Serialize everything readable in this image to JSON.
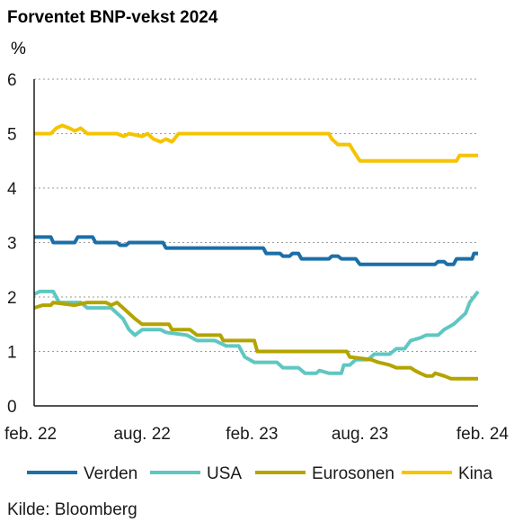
{
  "chart_data": {
    "type": "line",
    "title": "Forventet BNP-vekst 2024",
    "ylabel": "%",
    "xlabel": "",
    "ylim": [
      0,
      6
    ],
    "yticks": [
      0,
      1,
      2,
      3,
      4,
      5,
      6
    ],
    "xlim": [
      "2022-02-01",
      "2024-02-15"
    ],
    "xtick_labels": [
      {
        "date": "2022-02-01",
        "label": "feb. 22"
      },
      {
        "date": "2022-08-01",
        "label": "aug. 22"
      },
      {
        "date": "2023-02-01",
        "label": "feb. 23"
      },
      {
        "date": "2023-08-01",
        "label": "aug. 23"
      },
      {
        "date": "2024-02-01",
        "label": "feb. 24"
      }
    ],
    "grid": "horizontal dotted",
    "legend_position": "bottom",
    "source": "Kilde: Bloomberg",
    "series": [
      {
        "name": "Verden",
        "color": "#1b6fa8",
        "points": [
          [
            "2022-02-01",
            3.1
          ],
          [
            "2022-03-01",
            3.1
          ],
          [
            "2022-03-05",
            3.0
          ],
          [
            "2022-04-10",
            3.0
          ],
          [
            "2022-04-15",
            3.1
          ],
          [
            "2022-05-10",
            3.1
          ],
          [
            "2022-05-15",
            3.0
          ],
          [
            "2022-06-20",
            3.0
          ],
          [
            "2022-06-25",
            2.95
          ],
          [
            "2022-07-05",
            2.95
          ],
          [
            "2022-07-10",
            3.0
          ],
          [
            "2022-09-05",
            3.0
          ],
          [
            "2022-09-10",
            2.9
          ],
          [
            "2023-01-10",
            2.9
          ],
          [
            "2023-01-15",
            2.9
          ],
          [
            "2023-02-20",
            2.9
          ],
          [
            "2023-02-25",
            2.8
          ],
          [
            "2023-03-20",
            2.8
          ],
          [
            "2023-03-25",
            2.75
          ],
          [
            "2023-04-05",
            2.75
          ],
          [
            "2023-04-10",
            2.8
          ],
          [
            "2023-04-20",
            2.8
          ],
          [
            "2023-04-25",
            2.7
          ],
          [
            "2023-06-10",
            2.7
          ],
          [
            "2023-06-15",
            2.75
          ],
          [
            "2023-06-25",
            2.75
          ],
          [
            "2023-07-01",
            2.7
          ],
          [
            "2023-07-25",
            2.7
          ],
          [
            "2023-08-01",
            2.6
          ],
          [
            "2023-12-05",
            2.6
          ],
          [
            "2023-12-10",
            2.65
          ],
          [
            "2023-12-20",
            2.65
          ],
          [
            "2023-12-25",
            2.6
          ],
          [
            "2024-01-05",
            2.6
          ],
          [
            "2024-01-10",
            2.7
          ],
          [
            "2024-02-05",
            2.7
          ],
          [
            "2024-02-08",
            2.8
          ],
          [
            "2024-02-15",
            2.8
          ]
        ]
      },
      {
        "name": "USA",
        "color": "#5fc7c1",
        "points": [
          [
            "2022-02-01",
            2.05
          ],
          [
            "2022-02-10",
            2.1
          ],
          [
            "2022-03-05",
            2.1
          ],
          [
            "2022-03-15",
            1.9
          ],
          [
            "2022-04-20",
            1.9
          ],
          [
            "2022-05-01",
            1.8
          ],
          [
            "2022-06-10",
            1.8
          ],
          [
            "2022-06-20",
            1.7
          ],
          [
            "2022-06-30",
            1.6
          ],
          [
            "2022-07-10",
            1.4
          ],
          [
            "2022-07-20",
            1.3
          ],
          [
            "2022-08-01",
            1.4
          ],
          [
            "2022-09-01",
            1.4
          ],
          [
            "2022-09-10",
            1.35
          ],
          [
            "2022-10-15",
            1.3
          ],
          [
            "2022-11-01",
            1.2
          ],
          [
            "2022-12-01",
            1.2
          ],
          [
            "2022-12-20",
            1.1
          ],
          [
            "2023-01-10",
            1.1
          ],
          [
            "2023-01-20",
            0.9
          ],
          [
            "2023-02-05",
            0.8
          ],
          [
            "2023-03-15",
            0.8
          ],
          [
            "2023-03-25",
            0.7
          ],
          [
            "2023-04-20",
            0.7
          ],
          [
            "2023-05-01",
            0.6
          ],
          [
            "2023-05-20",
            0.6
          ],
          [
            "2023-05-25",
            0.65
          ],
          [
            "2023-06-10",
            0.6
          ],
          [
            "2023-07-01",
            0.6
          ],
          [
            "2023-07-05",
            0.75
          ],
          [
            "2023-07-15",
            0.75
          ],
          [
            "2023-07-25",
            0.85
          ],
          [
            "2023-08-15",
            0.85
          ],
          [
            "2023-08-25",
            0.95
          ],
          [
            "2023-09-20",
            0.95
          ],
          [
            "2023-10-01",
            1.05
          ],
          [
            "2023-10-15",
            1.05
          ],
          [
            "2023-10-25",
            1.2
          ],
          [
            "2023-11-10",
            1.25
          ],
          [
            "2023-11-20",
            1.3
          ],
          [
            "2023-12-10",
            1.3
          ],
          [
            "2023-12-20",
            1.4
          ],
          [
            "2024-01-05",
            1.5
          ],
          [
            "2024-01-15",
            1.6
          ],
          [
            "2024-01-25",
            1.7
          ],
          [
            "2024-02-01",
            1.9
          ],
          [
            "2024-02-15",
            2.1
          ]
        ]
      },
      {
        "name": "Eurosonen",
        "color": "#b3a400",
        "points": [
          [
            "2022-02-01",
            1.8
          ],
          [
            "2022-02-15",
            1.85
          ],
          [
            "2022-03-01",
            1.85
          ],
          [
            "2022-03-05",
            1.9
          ],
          [
            "2022-04-10",
            1.85
          ],
          [
            "2022-05-01",
            1.9
          ],
          [
            "2022-06-01",
            1.9
          ],
          [
            "2022-06-10",
            1.85
          ],
          [
            "2022-06-20",
            1.9
          ],
          [
            "2022-07-05",
            1.75
          ],
          [
            "2022-07-20",
            1.6
          ],
          [
            "2022-08-01",
            1.5
          ],
          [
            "2022-09-15",
            1.5
          ],
          [
            "2022-09-20",
            1.4
          ],
          [
            "2022-10-20",
            1.4
          ],
          [
            "2022-11-01",
            1.3
          ],
          [
            "2022-12-10",
            1.3
          ],
          [
            "2022-12-15",
            1.2
          ],
          [
            "2023-02-05",
            1.2
          ],
          [
            "2023-02-10",
            1.0
          ],
          [
            "2023-07-10",
            1.0
          ],
          [
            "2023-07-15",
            0.9
          ],
          [
            "2023-08-20",
            0.85
          ],
          [
            "2023-09-01",
            0.8
          ],
          [
            "2023-09-20",
            0.75
          ],
          [
            "2023-10-01",
            0.7
          ],
          [
            "2023-10-25",
            0.7
          ],
          [
            "2023-11-01",
            0.65
          ],
          [
            "2023-11-10",
            0.6
          ],
          [
            "2023-11-20",
            0.55
          ],
          [
            "2023-12-01",
            0.55
          ],
          [
            "2023-12-05",
            0.6
          ],
          [
            "2023-12-20",
            0.55
          ],
          [
            "2024-01-01",
            0.5
          ],
          [
            "2024-02-15",
            0.5
          ]
        ]
      },
      {
        "name": "Kina",
        "color": "#f5c400",
        "points": [
          [
            "2022-02-01",
            5.0
          ],
          [
            "2022-03-01",
            5.0
          ],
          [
            "2022-03-10",
            5.1
          ],
          [
            "2022-03-20",
            5.15
          ],
          [
            "2022-04-01",
            5.1
          ],
          [
            "2022-04-10",
            5.05
          ],
          [
            "2022-04-20",
            5.1
          ],
          [
            "2022-05-01",
            5.0
          ],
          [
            "2022-06-20",
            5.0
          ],
          [
            "2022-07-01",
            4.95
          ],
          [
            "2022-07-10",
            5.0
          ],
          [
            "2022-08-01",
            4.95
          ],
          [
            "2022-08-10",
            5.0
          ],
          [
            "2022-08-20",
            4.9
          ],
          [
            "2022-09-01",
            4.85
          ],
          [
            "2022-09-10",
            4.9
          ],
          [
            "2022-09-20",
            4.85
          ],
          [
            "2022-10-01",
            5.0
          ],
          [
            "2023-06-10",
            5.0
          ],
          [
            "2023-06-15",
            4.9
          ],
          [
            "2023-06-25",
            4.8
          ],
          [
            "2023-07-15",
            4.8
          ],
          [
            "2023-07-20",
            4.7
          ],
          [
            "2023-08-01",
            4.5
          ],
          [
            "2023-10-15",
            4.5
          ],
          [
            "2023-10-20",
            4.5
          ],
          [
            "2024-01-10",
            4.5
          ],
          [
            "2024-01-15",
            4.6
          ],
          [
            "2024-02-15",
            4.6
          ]
        ]
      }
    ]
  }
}
